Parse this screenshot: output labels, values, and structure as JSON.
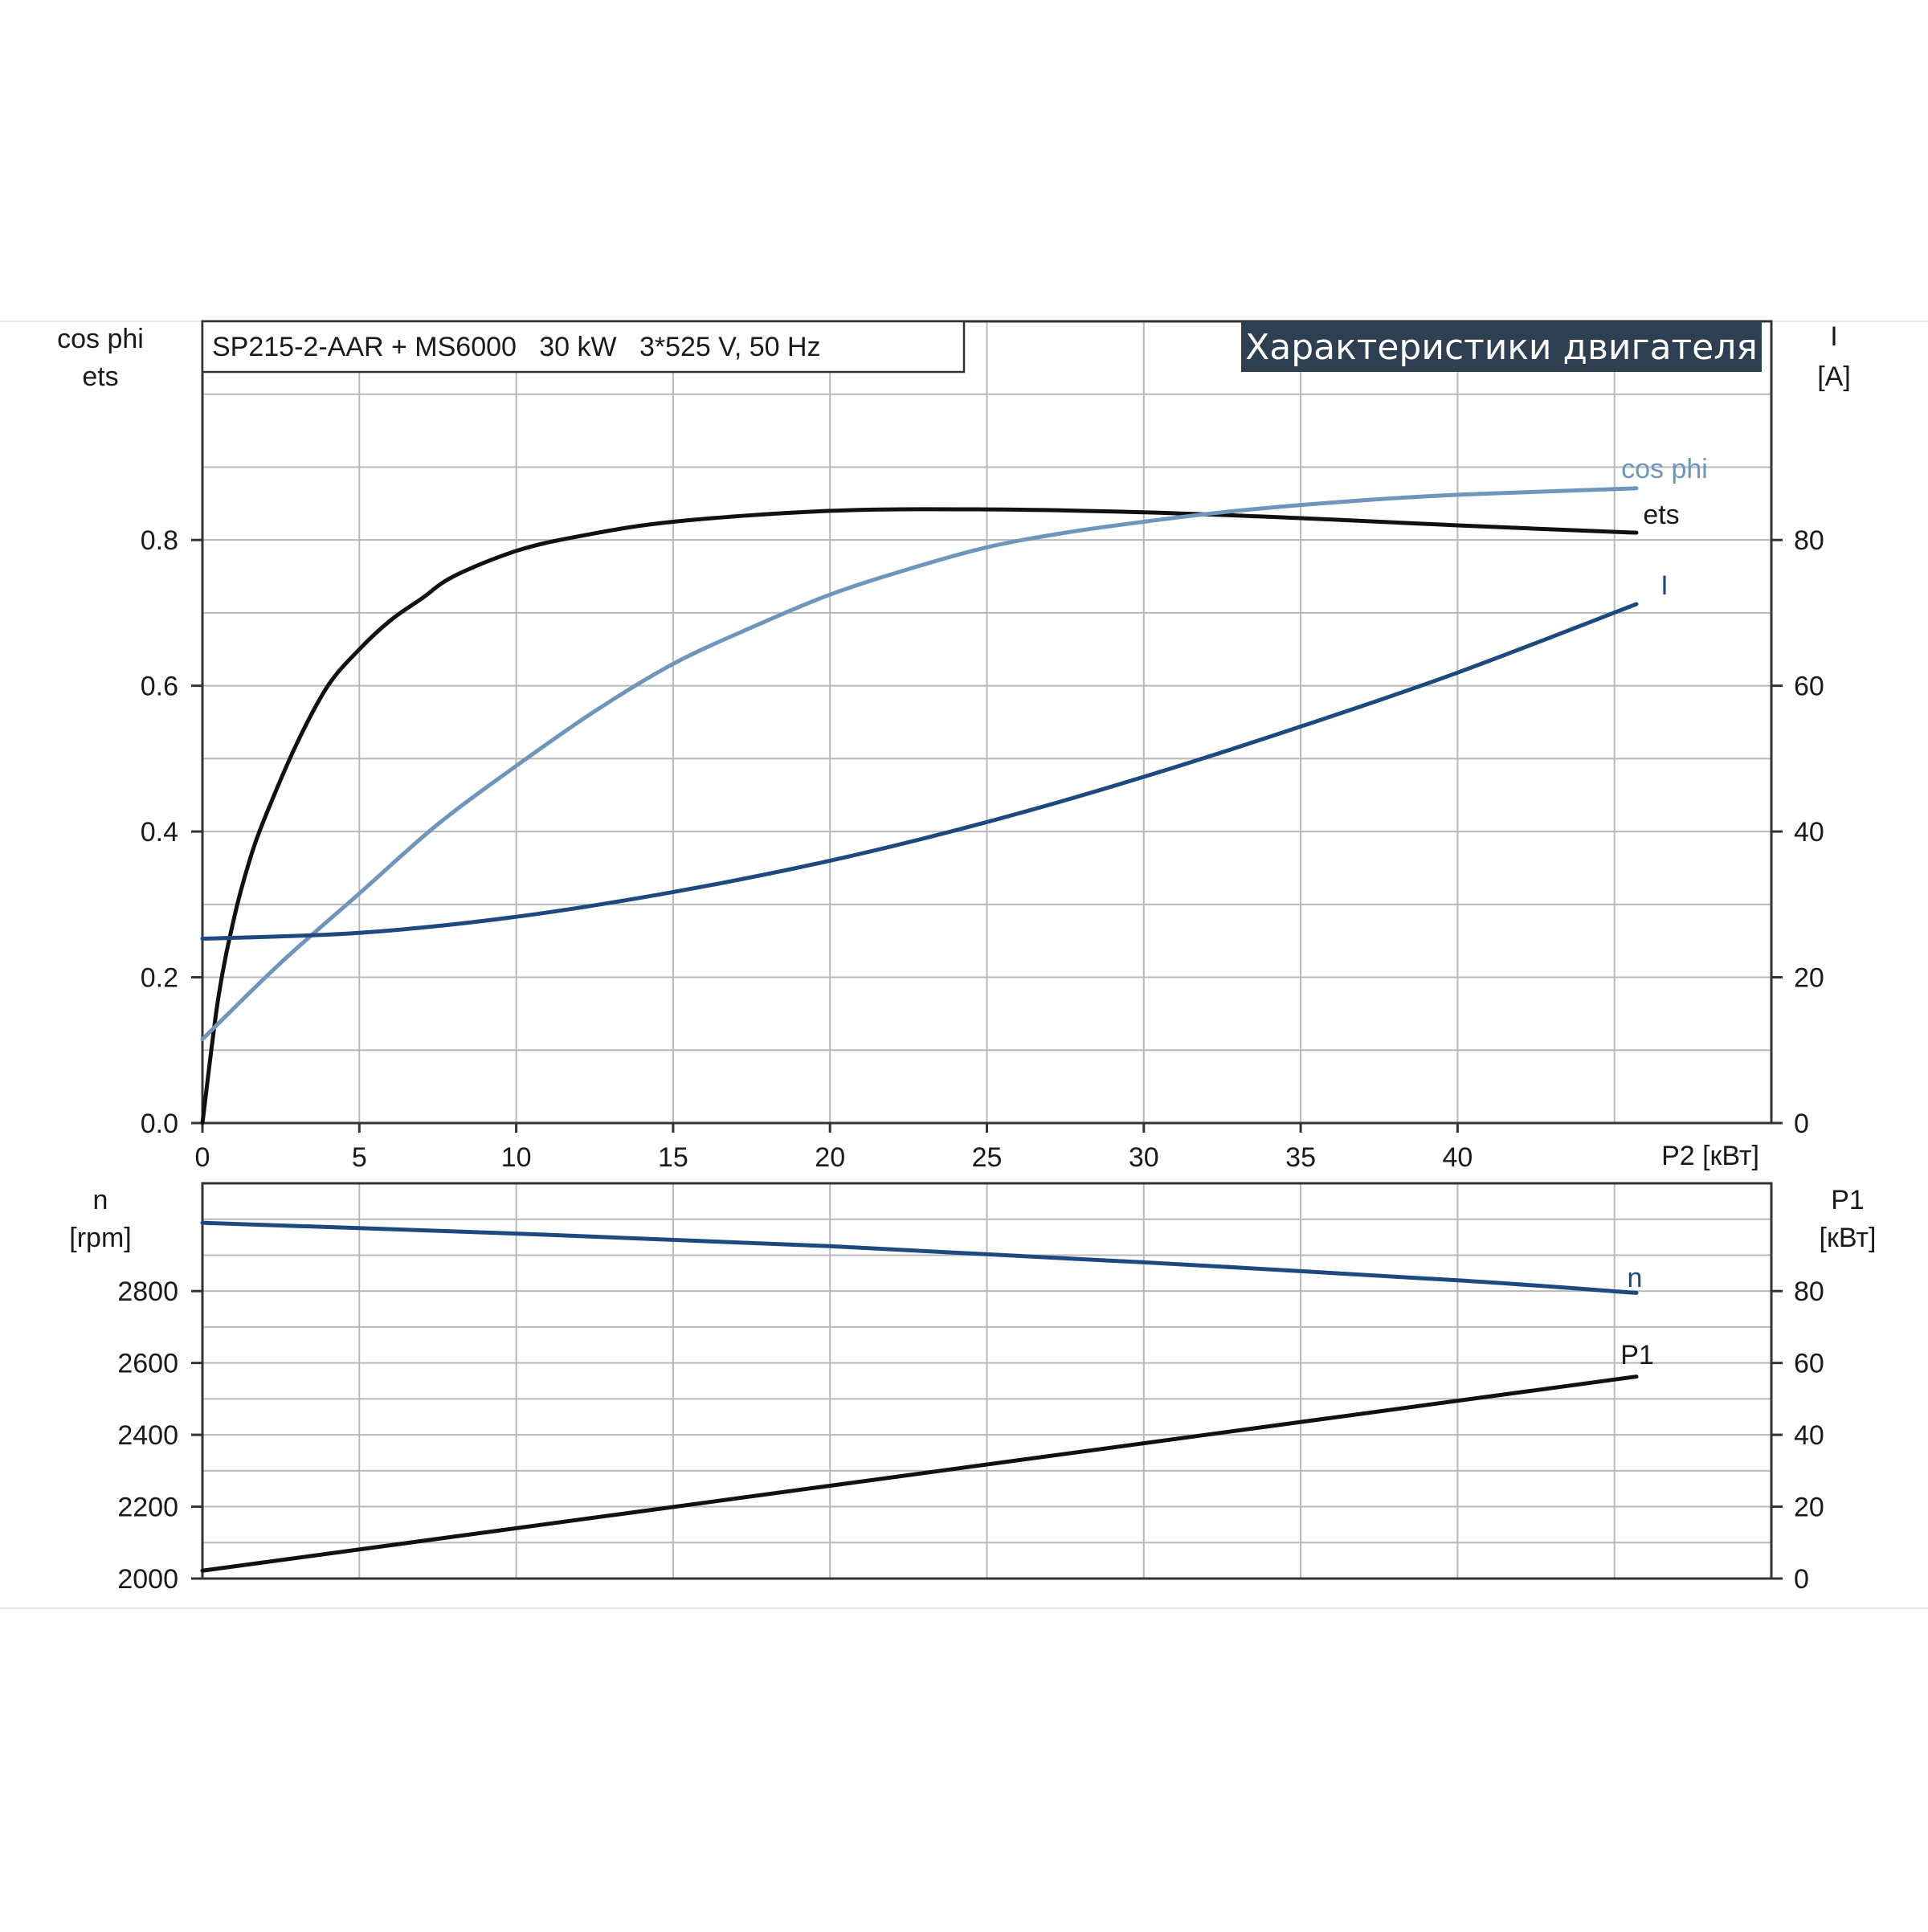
{
  "info_box": "SP215-2-AAR + MS6000   30 kW   3*525 V, 50 Hz",
  "title": "Характеристики двигателя",
  "colors": {
    "grid": "#b8b8b8",
    "axis": "#333333",
    "ets": "#111111",
    "cos_phi": "#6e95bb",
    "current": "#1c4a80",
    "speed": "#1c4a80",
    "p1": "#111111",
    "title_bg": "#2f3f52"
  },
  "chart_data": [
    {
      "type": "line",
      "name": "motor-efficiency-power-factor-current",
      "xlabel": "P2 [кВт]",
      "x_ticks": [
        "0",
        "5",
        "10",
        "15",
        "20",
        "25",
        "30",
        "35",
        "40"
      ],
      "xlim": [
        0,
        50
      ],
      "left_axis": {
        "label_lines": [
          "cos phi",
          "ets"
        ],
        "ylim": [
          0,
          1.1
        ],
        "ticks": [
          "0.0",
          "0.2",
          "0.4",
          "0.6",
          "0.8"
        ]
      },
      "right_axis": {
        "label_lines": [
          "I",
          "[A]"
        ],
        "ylim": [
          0,
          110
        ],
        "ticks": [
          "0",
          "20",
          "40",
          "60",
          "80"
        ]
      },
      "grid": true,
      "series": [
        {
          "name": "ets",
          "axis": "left",
          "x": [
            0,
            0.5,
            1,
            1.5,
            2,
            3,
            4,
            5,
            6,
            7,
            8,
            10,
            12,
            15,
            20,
            25,
            30,
            35,
            40,
            45.7
          ],
          "y": [
            0.0,
            0.17,
            0.28,
            0.36,
            0.42,
            0.52,
            0.6,
            0.65,
            0.69,
            0.72,
            0.75,
            0.785,
            0.805,
            0.825,
            0.84,
            0.842,
            0.838,
            0.83,
            0.82,
            0.81
          ]
        },
        {
          "name": "cos phi",
          "axis": "left",
          "x": [
            0,
            2.5,
            5,
            7.5,
            10,
            12.5,
            15,
            17.5,
            20,
            22.5,
            25,
            27.5,
            30,
            32.5,
            35,
            37.5,
            40,
            42.5,
            45.7
          ],
          "y": [
            0.115,
            0.22,
            0.315,
            0.41,
            0.49,
            0.565,
            0.63,
            0.68,
            0.725,
            0.76,
            0.79,
            0.81,
            0.825,
            0.838,
            0.848,
            0.856,
            0.862,
            0.866,
            0.871
          ]
        },
        {
          "name": "I",
          "axis": "right",
          "x": [
            0,
            5,
            10,
            15,
            20,
            25,
            30,
            35,
            40,
            45.7
          ],
          "y": [
            25.3,
            26.1,
            28.3,
            31.7,
            36.0,
            41.3,
            47.5,
            54.4,
            61.8,
            71.2
          ]
        }
      ]
    },
    {
      "type": "line",
      "name": "motor-speed-input-power",
      "left_axis": {
        "label_lines": [
          "n",
          "[rpm]"
        ],
        "ylim": [
          2000,
          3100
        ],
        "ticks": [
          "2000",
          "2200",
          "2400",
          "2600",
          "2800"
        ]
      },
      "right_axis": {
        "label_lines": [
          "P1",
          "[кВт]"
        ],
        "ylim": [
          0,
          110
        ],
        "ticks": [
          "0",
          "20",
          "40",
          "60",
          "80"
        ]
      },
      "xlim": [
        0,
        50
      ],
      "grid": true,
      "series": [
        {
          "name": "n",
          "axis": "left",
          "x": [
            0,
            10,
            20,
            30,
            40,
            45.7
          ],
          "y": [
            2990,
            2960,
            2925,
            2880,
            2830,
            2795
          ]
        },
        {
          "name": "P1",
          "axis": "right",
          "x": [
            0,
            45.7
          ],
          "y": [
            2.2,
            56.2
          ]
        }
      ]
    }
  ]
}
